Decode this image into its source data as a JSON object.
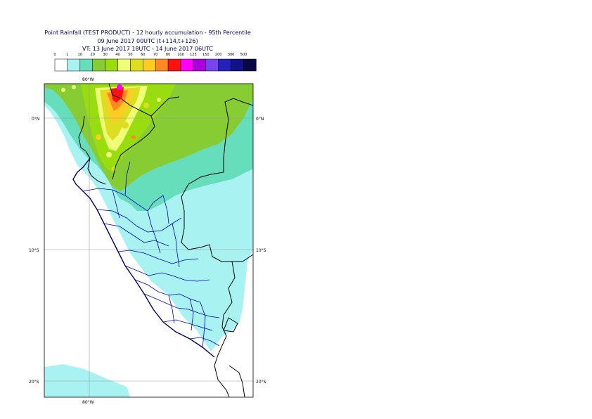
{
  "title": {
    "line1": "Point Rainfall (TEST PRODUCT) - 12 hourly accumulation - 95th Percentile",
    "line2": "09 June 2017 00UTC (t+114,t+126)",
    "line3": "VT: 13 June 2017 18UTC - 14 June 2017 06UTC"
  },
  "legend": {
    "levels": [
      "0",
      "1",
      "10",
      "20",
      "30",
      "40",
      "50",
      "60",
      "70",
      "80",
      "100",
      "125",
      "150",
      "200",
      "300",
      "500"
    ],
    "colors": [
      "#ffffff",
      "#a8f2f2",
      "#66ddbb",
      "#88cc33",
      "#99dd11",
      "#eeff77",
      "#dddd22",
      "#ffcc22",
      "#ff8822",
      "#ff1111",
      "#ff00ff",
      "#aa00dd",
      "#7744ee",
      "#2222bb",
      "#111188",
      "#080844"
    ]
  },
  "axes": {
    "lon_labels": [
      "80°W",
      "80°W"
    ],
    "lat_labels_left": [
      "0°N",
      "10°S",
      "20°S"
    ],
    "lat_labels_right": [
      "0°N",
      "10°S",
      "20°S"
    ]
  }
}
